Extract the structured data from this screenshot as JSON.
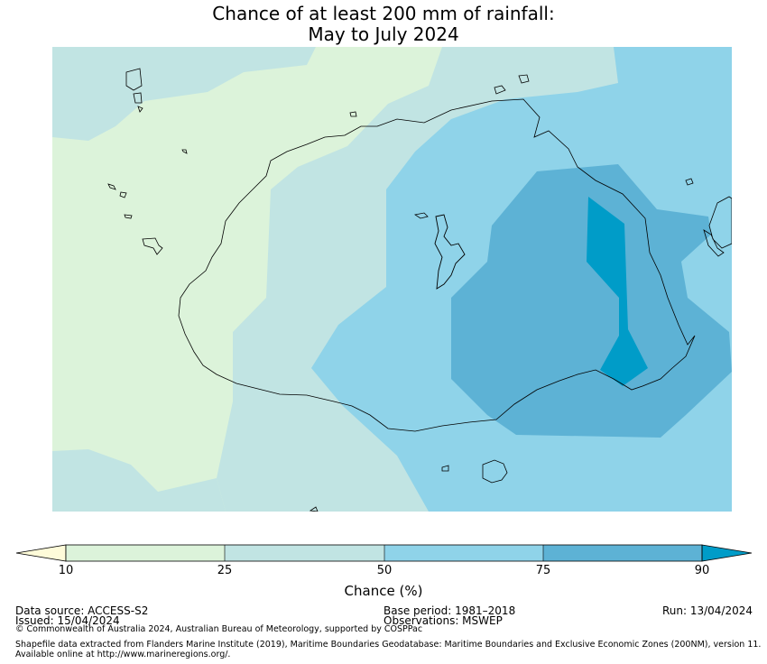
{
  "title": {
    "line1": "Chance of at least 200 mm of rainfall:",
    "line2": "May to July 2024"
  },
  "colorbar": {
    "label": "Chance (%)",
    "ticks": [
      "10",
      "25",
      "50",
      "75",
      "90"
    ],
    "bands": [
      {
        "range": "<10",
        "color": "#fefbd9"
      },
      {
        "range": "10-25",
        "color": "#dcf3da"
      },
      {
        "range": "25-50",
        "color": "#c1e4e3"
      },
      {
        "range": "50-75",
        "color": "#8fd3e9"
      },
      {
        "range": "75-90",
        "color": "#5db2d5"
      },
      {
        "range": ">90",
        "color": "#009cc8"
      }
    ]
  },
  "footer": {
    "data_source": "Data source: ACCESS-S2",
    "issued": "Issued: 15/04/2024",
    "base_period": "Base period: 1981–2018",
    "observations": "Observations: MSWEP",
    "run": "Run: 13/04/2024",
    "copyright": "© Commonwealth of Australia 2024, Australian Bureau of Meteorology, supported by COSPPac",
    "shapefile_line1": "Shapefile data extracted from Flanders Marine Institute (2019), Maritime Boundaries Geodatabase: Maritime Boundaries and Exclusive Economic Zones (200NM), version 11.",
    "shapefile_line2": "Available online at http://www.marineregions.org/."
  },
  "map_data": {
    "variable": "Chance of at least 200 mm of rainfall",
    "period": "May to July 2024",
    "zones": [
      "10-25",
      "25-50",
      "50-75",
      "75-90",
      ">90"
    ]
  }
}
